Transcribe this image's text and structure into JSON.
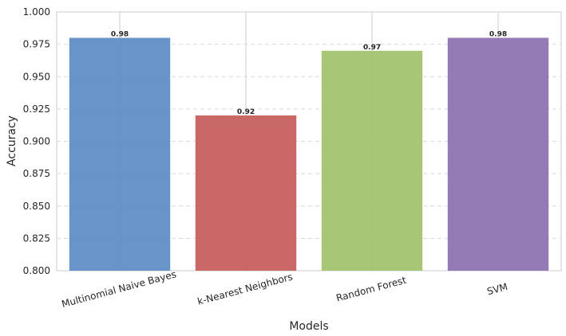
{
  "chart_data": {
    "type": "bar",
    "title": "",
    "xlabel": "Models",
    "ylabel": "Accuracy",
    "categories": [
      "Multinomial Naive Bayes",
      "k-Nearest Neighbors",
      "Random Forest",
      "SVM"
    ],
    "values": [
      0.98,
      0.92,
      0.97,
      0.98
    ],
    "data_labels": [
      "0.98",
      "0.92",
      "0.97",
      "0.98"
    ],
    "colors": [
      "#5b8bc5",
      "#c55a5a",
      "#9fc26a",
      "#8c70b0"
    ],
    "ylim": [
      0.8,
      1.0
    ],
    "yticks": [
      0.8,
      0.825,
      0.85,
      0.875,
      0.9,
      0.925,
      0.95,
      0.975,
      1.0
    ],
    "ytick_labels": [
      "0.800",
      "0.825",
      "0.850",
      "0.875",
      "0.900",
      "0.925",
      "0.950",
      "0.975",
      "1.000"
    ],
    "grid": "y dashed",
    "legend": "none"
  }
}
